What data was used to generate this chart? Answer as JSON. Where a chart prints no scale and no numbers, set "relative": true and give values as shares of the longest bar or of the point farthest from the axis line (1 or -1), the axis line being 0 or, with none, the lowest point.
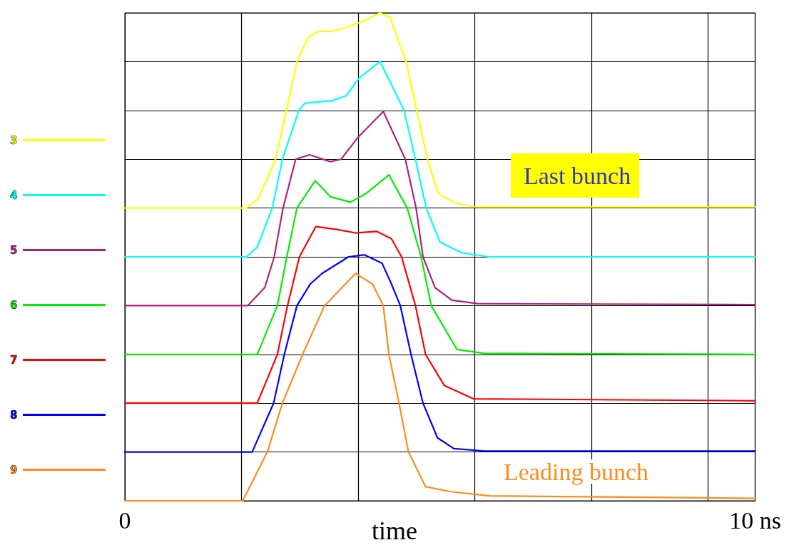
{
  "chart_data": {
    "type": "line",
    "relative": true,
    "xlabel": "time",
    "xlim": [
      0,
      10
    ],
    "xticks": [
      0,
      {
        "value": 1.85,
        "label": null
      },
      {
        "value": 3.7,
        "label": null
      },
      {
        "value": 5.55,
        "label": null
      },
      {
        "value": 7.4,
        "label": null
      },
      {
        "value": 9.25,
        "label": null
      },
      {
        "value": 10,
        "label": "10 ns"
      }
    ],
    "grid": true,
    "legend": "left",
    "tick_labels": "x",
    "marker": "none",
    "line_style": "solid",
    "annotations": [
      "Last bunch",
      "Leading bunch"
    ],
    "series": [
      {
        "name": "3",
        "color": "#ffff00",
        "x": [
          0,
          1.93,
          2.1,
          2.26,
          2.39,
          2.53,
          2.73,
          2.91,
          3.07,
          3.29,
          3.51,
          3.72,
          3.89,
          4.05,
          4.21,
          4.32,
          4.46,
          4.63,
          4.8,
          4.97,
          5.24,
          5.57,
          10
        ],
        "values": [
          0.6,
          0.6,
          0.617,
          0.66,
          0.7,
          0.78,
          0.9,
          0.95,
          0.962,
          0.962,
          0.97,
          0.98,
          0.99,
          1.0,
          0.99,
          0.95,
          0.9,
          0.8,
          0.7,
          0.63,
          0.61,
          0.602,
          0.602
        ]
      },
      {
        "name": "4",
        "color": "#00ffff",
        "x": [
          0,
          1.93,
          2.1,
          2.34,
          2.5,
          2.76,
          2.86,
          3.29,
          3.51,
          3.72,
          4.05,
          4.43,
          4.61,
          4.78,
          5.0,
          5.35,
          5.78,
          10
        ],
        "values": [
          0.5,
          0.5,
          0.52,
          0.6,
          0.7,
          0.8,
          0.815,
          0.82,
          0.83,
          0.867,
          0.9,
          0.8,
          0.7,
          0.6,
          0.53,
          0.508,
          0.5,
          0.5
        ]
      },
      {
        "name": "5",
        "color": "#b0207f",
        "x": [
          0,
          1.95,
          2.22,
          2.37,
          2.51,
          2.71,
          2.93,
          3.26,
          3.43,
          3.7,
          4.1,
          4.45,
          4.62,
          4.73,
          4.92,
          5.19,
          5.6,
          10
        ],
        "values": [
          0.4,
          0.4,
          0.437,
          0.5,
          0.6,
          0.7,
          0.709,
          0.695,
          0.7,
          0.745,
          0.798,
          0.7,
          0.6,
          0.5,
          0.437,
          0.411,
          0.404,
          0.402
        ]
      },
      {
        "name": "6",
        "color": "#00ee00",
        "x": [
          0,
          2.1,
          2.42,
          2.57,
          2.73,
          3.02,
          3.26,
          3.58,
          3.83,
          4.19,
          4.48,
          4.7,
          4.86,
          5.27,
          5.7,
          10
        ],
        "values": [
          0.3,
          0.3,
          0.4,
          0.5,
          0.6,
          0.656,
          0.623,
          0.612,
          0.63,
          0.668,
          0.6,
          0.5,
          0.4,
          0.31,
          0.302,
          0.3
        ]
      },
      {
        "name": "7",
        "color": "#ff0000",
        "x": [
          0,
          2.1,
          2.42,
          2.58,
          2.77,
          3.03,
          3.36,
          3.66,
          4.0,
          4.23,
          4.39,
          4.61,
          4.77,
          5.07,
          5.53,
          10
        ],
        "values": [
          0.2,
          0.2,
          0.3,
          0.4,
          0.5,
          0.562,
          0.556,
          0.549,
          0.552,
          0.537,
          0.5,
          0.4,
          0.3,
          0.236,
          0.209,
          0.205
        ]
      },
      {
        "name": "8",
        "color": "#0000ff",
        "x": [
          0,
          2.02,
          2.36,
          2.53,
          2.73,
          2.94,
          3.13,
          3.55,
          3.8,
          4.08,
          4.23,
          4.37,
          4.54,
          4.73,
          4.96,
          5.22,
          5.7,
          10
        ],
        "values": [
          0.1,
          0.1,
          0.2,
          0.3,
          0.4,
          0.444,
          0.466,
          0.5,
          0.504,
          0.487,
          0.444,
          0.4,
          0.3,
          0.2,
          0.129,
          0.107,
          0.102,
          0.102
        ]
      },
      {
        "name": "9",
        "color": "#ff8c1a",
        "x": [
          0,
          1.87,
          2.26,
          2.5,
          2.82,
          3.17,
          3.66,
          3.93,
          4.1,
          4.19,
          4.35,
          4.5,
          4.77,
          5.15,
          5.79,
          10
        ],
        "values": [
          0,
          0,
          0.1,
          0.2,
          0.3,
          0.4,
          0.466,
          0.444,
          0.4,
          0.3,
          0.2,
          0.1,
          0.029,
          0.019,
          0.01,
          0.005
        ]
      }
    ]
  }
}
